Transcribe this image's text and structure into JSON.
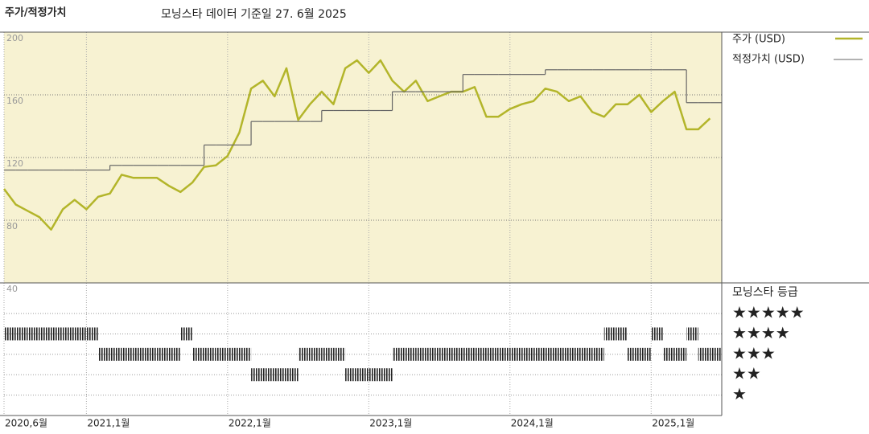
{
  "chart_data": [
    {
      "type": "line",
      "title": "주가/적정가치",
      "subtitle": "모닝스타 데이터 기준일 27. 6월 2025",
      "x": [
        "2020-06",
        "2020-07",
        "2020-08",
        "2020-09",
        "2020-10",
        "2020-11",
        "2020-12",
        "2021-01",
        "2021-02",
        "2021-03",
        "2021-04",
        "2021-05",
        "2021-06",
        "2021-07",
        "2021-08",
        "2021-09",
        "2021-10",
        "2021-11",
        "2021-12",
        "2022-01",
        "2022-02",
        "2022-03",
        "2022-04",
        "2022-05",
        "2022-06",
        "2022-07",
        "2022-08",
        "2022-09",
        "2022-10",
        "2022-11",
        "2022-12",
        "2023-01",
        "2023-02",
        "2023-03",
        "2023-04",
        "2023-05",
        "2023-06",
        "2023-07",
        "2023-08",
        "2023-09",
        "2023-10",
        "2023-11",
        "2023-12",
        "2024-01",
        "2024-02",
        "2024-03",
        "2024-04",
        "2024-05",
        "2024-06",
        "2024-07",
        "2024-08",
        "2024-09",
        "2024-10",
        "2024-11",
        "2024-12",
        "2025-01",
        "2025-02",
        "2025-03",
        "2025-04",
        "2025-05",
        "2025-06"
      ],
      "series": [
        {
          "name": "주가 (USD)",
          "color": "#b3b52a",
          "style": "line",
          "values": [
            100,
            90,
            86,
            82,
            74,
            87,
            93,
            87,
            95,
            97,
            109,
            107,
            107,
            107,
            102,
            98,
            104,
            114,
            115,
            121,
            136,
            164,
            169,
            159,
            177,
            144,
            154,
            162,
            154,
            177,
            182,
            174,
            182,
            169,
            162,
            169,
            156,
            159,
            162,
            162,
            165,
            146,
            146,
            151,
            154,
            156,
            164,
            162,
            156,
            159,
            149,
            146,
            154,
            154,
            160,
            149,
            156,
            162,
            138,
            138,
            145
          ]
        },
        {
          "name": "적정가치 (USD)",
          "color": "#666666",
          "style": "step",
          "values": [
            112,
            112,
            112,
            112,
            112,
            112,
            112,
            112,
            112,
            115,
            115,
            115,
            115,
            115,
            115,
            115,
            115,
            128,
            128,
            128,
            128,
            143,
            143,
            143,
            143,
            143,
            143,
            150,
            150,
            150,
            150,
            150,
            150,
            162,
            162,
            162,
            162,
            162,
            162,
            173,
            173,
            173,
            173,
            173,
            173,
            173,
            176,
            176,
            176,
            176,
            176,
            176,
            176,
            176,
            176,
            176,
            176,
            176,
            155,
            155,
            155
          ]
        }
      ],
      "xlim": [
        "2020-06",
        "2025-07"
      ],
      "xticks": [
        {
          "value": "2020-06",
          "label": "2020,6월"
        },
        {
          "value": "2021-01",
          "label": "2021,1월"
        },
        {
          "value": "2022-01",
          "label": "2022,1월"
        },
        {
          "value": "2023-01",
          "label": "2023,1월"
        },
        {
          "value": "2024-01",
          "label": "2024,1월"
        },
        {
          "value": "2025-01",
          "label": "2025,1월"
        }
      ],
      "ylim": [
        40,
        200
      ],
      "yticks": [
        40,
        80,
        120,
        160,
        200
      ],
      "grid": true,
      "background": "#f7f2d2"
    },
    {
      "type": "rating",
      "title": "모닝스타 등급",
      "color": "#222222",
      "values": [
        4,
        4,
        4,
        4,
        4,
        4,
        4,
        4,
        3,
        3,
        3,
        3,
        3,
        3,
        3,
        4,
        3,
        3,
        3,
        3,
        3,
        2,
        2,
        2,
        2,
        3,
        3,
        3,
        3,
        2,
        2,
        2,
        2,
        3,
        3,
        3,
        3,
        3,
        3,
        3,
        3,
        3,
        3,
        3,
        3,
        3,
        3,
        3,
        3,
        3,
        3,
        4,
        4,
        3,
        3,
        4,
        3,
        3,
        4,
        3,
        3
      ],
      "ylim": [
        0,
        6.5
      ],
      "yticks": [
        {
          "value": 5,
          "label": "★★★★★"
        },
        {
          "value": 4,
          "label": "★★★★"
        },
        {
          "value": 3,
          "label": "★★★"
        },
        {
          "value": 2,
          "label": "★★"
        },
        {
          "value": 1,
          "label": "★"
        }
      ]
    }
  ]
}
